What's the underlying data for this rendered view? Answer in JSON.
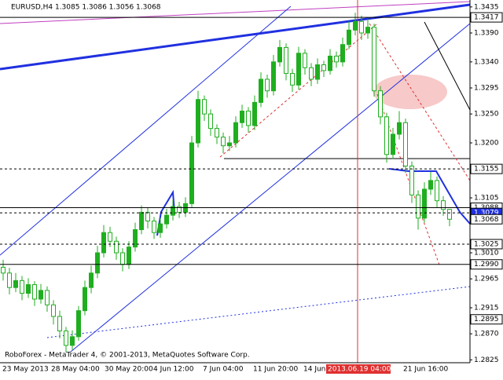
{
  "chart_data": {
    "type": "candlestick",
    "title": "EURUSD,H4 1.3085 1.3086 1.3056 1.3068",
    "footer": "RoboForex - MetaTrader 4, © 2001-2013, MetaQuotes Software Corp.",
    "color": "#1fae1f",
    "open": [
      1.2985,
      1.2975,
      1.295,
      1.2962,
      1.294,
      1.2955,
      1.293,
      1.2945,
      1.292,
      1.29,
      1.2875,
      1.285,
      1.2865,
      1.291,
      1.295,
      1.2975,
      1.301,
      1.3045,
      1.303,
      1.301,
      1.299,
      1.302,
      1.305,
      1.308,
      1.3065,
      1.3045,
      1.306,
      1.3075,
      1.309,
      1.308,
      1.3095,
      1.32,
      1.3275,
      1.325,
      1.3225,
      1.321,
      1.3195,
      1.32,
      1.3235,
      1.3255,
      1.323,
      1.327,
      1.331,
      1.329,
      1.334,
      1.3365,
      1.332,
      1.33,
      1.3355,
      1.333,
      1.331,
      1.3335,
      1.3325,
      1.335,
      1.334,
      1.337,
      1.3395,
      1.341,
      1.339,
      1.34,
      1.329,
      1.3245,
      1.318,
      1.3215,
      1.3235,
      1.316,
      1.311,
      1.307,
      1.312,
      1.3135,
      1.31,
      1.3085
    ],
    "high": [
      1.2998,
      1.2984,
      1.2975,
      1.297,
      1.2966,
      1.2961,
      1.2956,
      1.2952,
      1.2928,
      1.291,
      1.2882,
      1.2876,
      1.2918,
      1.2962,
      1.2988,
      1.3022,
      1.3058,
      1.3055,
      1.3038,
      1.3018,
      1.303,
      1.3062,
      1.3092,
      1.3088,
      1.3072,
      1.307,
      1.3086,
      1.3102,
      1.3098,
      1.3106,
      1.3212,
      1.329,
      1.3282,
      1.3258,
      1.3232,
      1.3218,
      1.3212,
      1.3246,
      1.3266,
      1.3262,
      1.3282,
      1.3322,
      1.3318,
      1.3352,
      1.3378,
      1.3372,
      1.3328,
      1.3366,
      1.3362,
      1.3338,
      1.3346,
      1.3342,
      1.3362,
      1.3358,
      1.3382,
      1.341,
      1.3425,
      1.342,
      1.3415,
      1.3406,
      1.3298,
      1.3252,
      1.3226,
      1.3255,
      1.3242,
      1.3168,
      1.3118,
      1.3132,
      1.315,
      1.3142,
      1.3108,
      1.3086
    ],
    "low": [
      1.2962,
      1.2938,
      1.2942,
      1.2928,
      1.2932,
      1.2918,
      1.2922,
      1.2908,
      1.2886,
      1.2862,
      1.2838,
      1.2842,
      1.2858,
      1.2902,
      1.294,
      1.2966,
      1.3002,
      1.302,
      1.2998,
      1.2978,
      1.2982,
      1.3012,
      1.3042,
      1.3052,
      1.3034,
      1.3036,
      1.3052,
      1.3066,
      1.307,
      1.3072,
      1.3088,
      1.3192,
      1.3238,
      1.3212,
      1.3198,
      1.3182,
      1.3186,
      1.3192,
      1.3226,
      1.3218,
      1.3222,
      1.3262,
      1.3278,
      1.3282,
      1.3332,
      1.3308,
      1.3288,
      1.3292,
      1.3318,
      1.3298,
      1.3302,
      1.3314,
      1.3318,
      1.333,
      1.3332,
      1.3362,
      1.3386,
      1.3378,
      1.338,
      1.328,
      1.3232,
      1.3166,
      1.3172,
      1.3206,
      1.3148,
      1.3096,
      1.305,
      1.3062,
      1.311,
      1.3088,
      1.3074,
      1.3056
    ],
    "close": [
      1.2975,
      1.295,
      1.2962,
      1.294,
      1.2955,
      1.293,
      1.2945,
      1.292,
      1.29,
      1.2875,
      1.285,
      1.2865,
      1.291,
      1.295,
      1.2975,
      1.301,
      1.3045,
      1.303,
      1.301,
      1.299,
      1.302,
      1.305,
      1.308,
      1.3065,
      1.3045,
      1.306,
      1.3075,
      1.309,
      1.308,
      1.3095,
      1.32,
      1.3275,
      1.325,
      1.3225,
      1.321,
      1.3195,
      1.32,
      1.3235,
      1.3255,
      1.323,
      1.327,
      1.331,
      1.329,
      1.334,
      1.3365,
      1.332,
      1.33,
      1.3355,
      1.333,
      1.331,
      1.3335,
      1.3325,
      1.335,
      1.334,
      1.337,
      1.3395,
      1.341,
      1.339,
      1.34,
      1.329,
      1.3245,
      1.318,
      1.3215,
      1.3235,
      1.316,
      1.311,
      1.307,
      1.312,
      1.3135,
      1.31,
      1.3085,
      1.3068
    ],
    "xlabels": [
      "23 May 2013",
      "28 May 04:00",
      "30 May 20:00",
      "4 Jun 12:00",
      "7 Jun 04:00",
      "11 Jun 20:00",
      "14 Jun",
      "2013.06.19 04:00",
      "21 Jun 16:00"
    ],
    "ylim": [
      1.282,
      1.3447
    ],
    "yticks": [
      1.3435,
      {
        "value": 1.339,
        "label": "1.3390"
      },
      {
        "value": 1.334,
        "label": "1.3340"
      },
      1.3295,
      {
        "value": 1.325,
        "label": "1.3250"
      },
      {
        "value": 1.32,
        "label": "1.3200"
      },
      1.3105,
      {
        "value": 1.301,
        "label": "1.3010"
      },
      1.2965,
      1.2915,
      {
        "value": 1.287,
        "label": "1.2870"
      },
      1.2825
    ],
    "levels": [
      {
        "value": 1.3417,
        "style": "solid",
        "box": "white"
      },
      {
        "value": 1.3155,
        "style": "dash",
        "box": "white"
      },
      {
        "value": 1.3088,
        "style": "solid",
        "box": "white"
      },
      {
        "value": 1.3079,
        "style": "dash",
        "box": "blue"
      },
      {
        "value": 1.3068,
        "style": "none",
        "box": "white"
      },
      {
        "value": 1.3025,
        "style": "dash",
        "box": "white"
      },
      {
        "value": 1.299,
        "label": "1.2990",
        "style": "solid",
        "box": "white"
      },
      {
        "value": 1.2895,
        "style": "none",
        "box": "white"
      }
    ]
  }
}
